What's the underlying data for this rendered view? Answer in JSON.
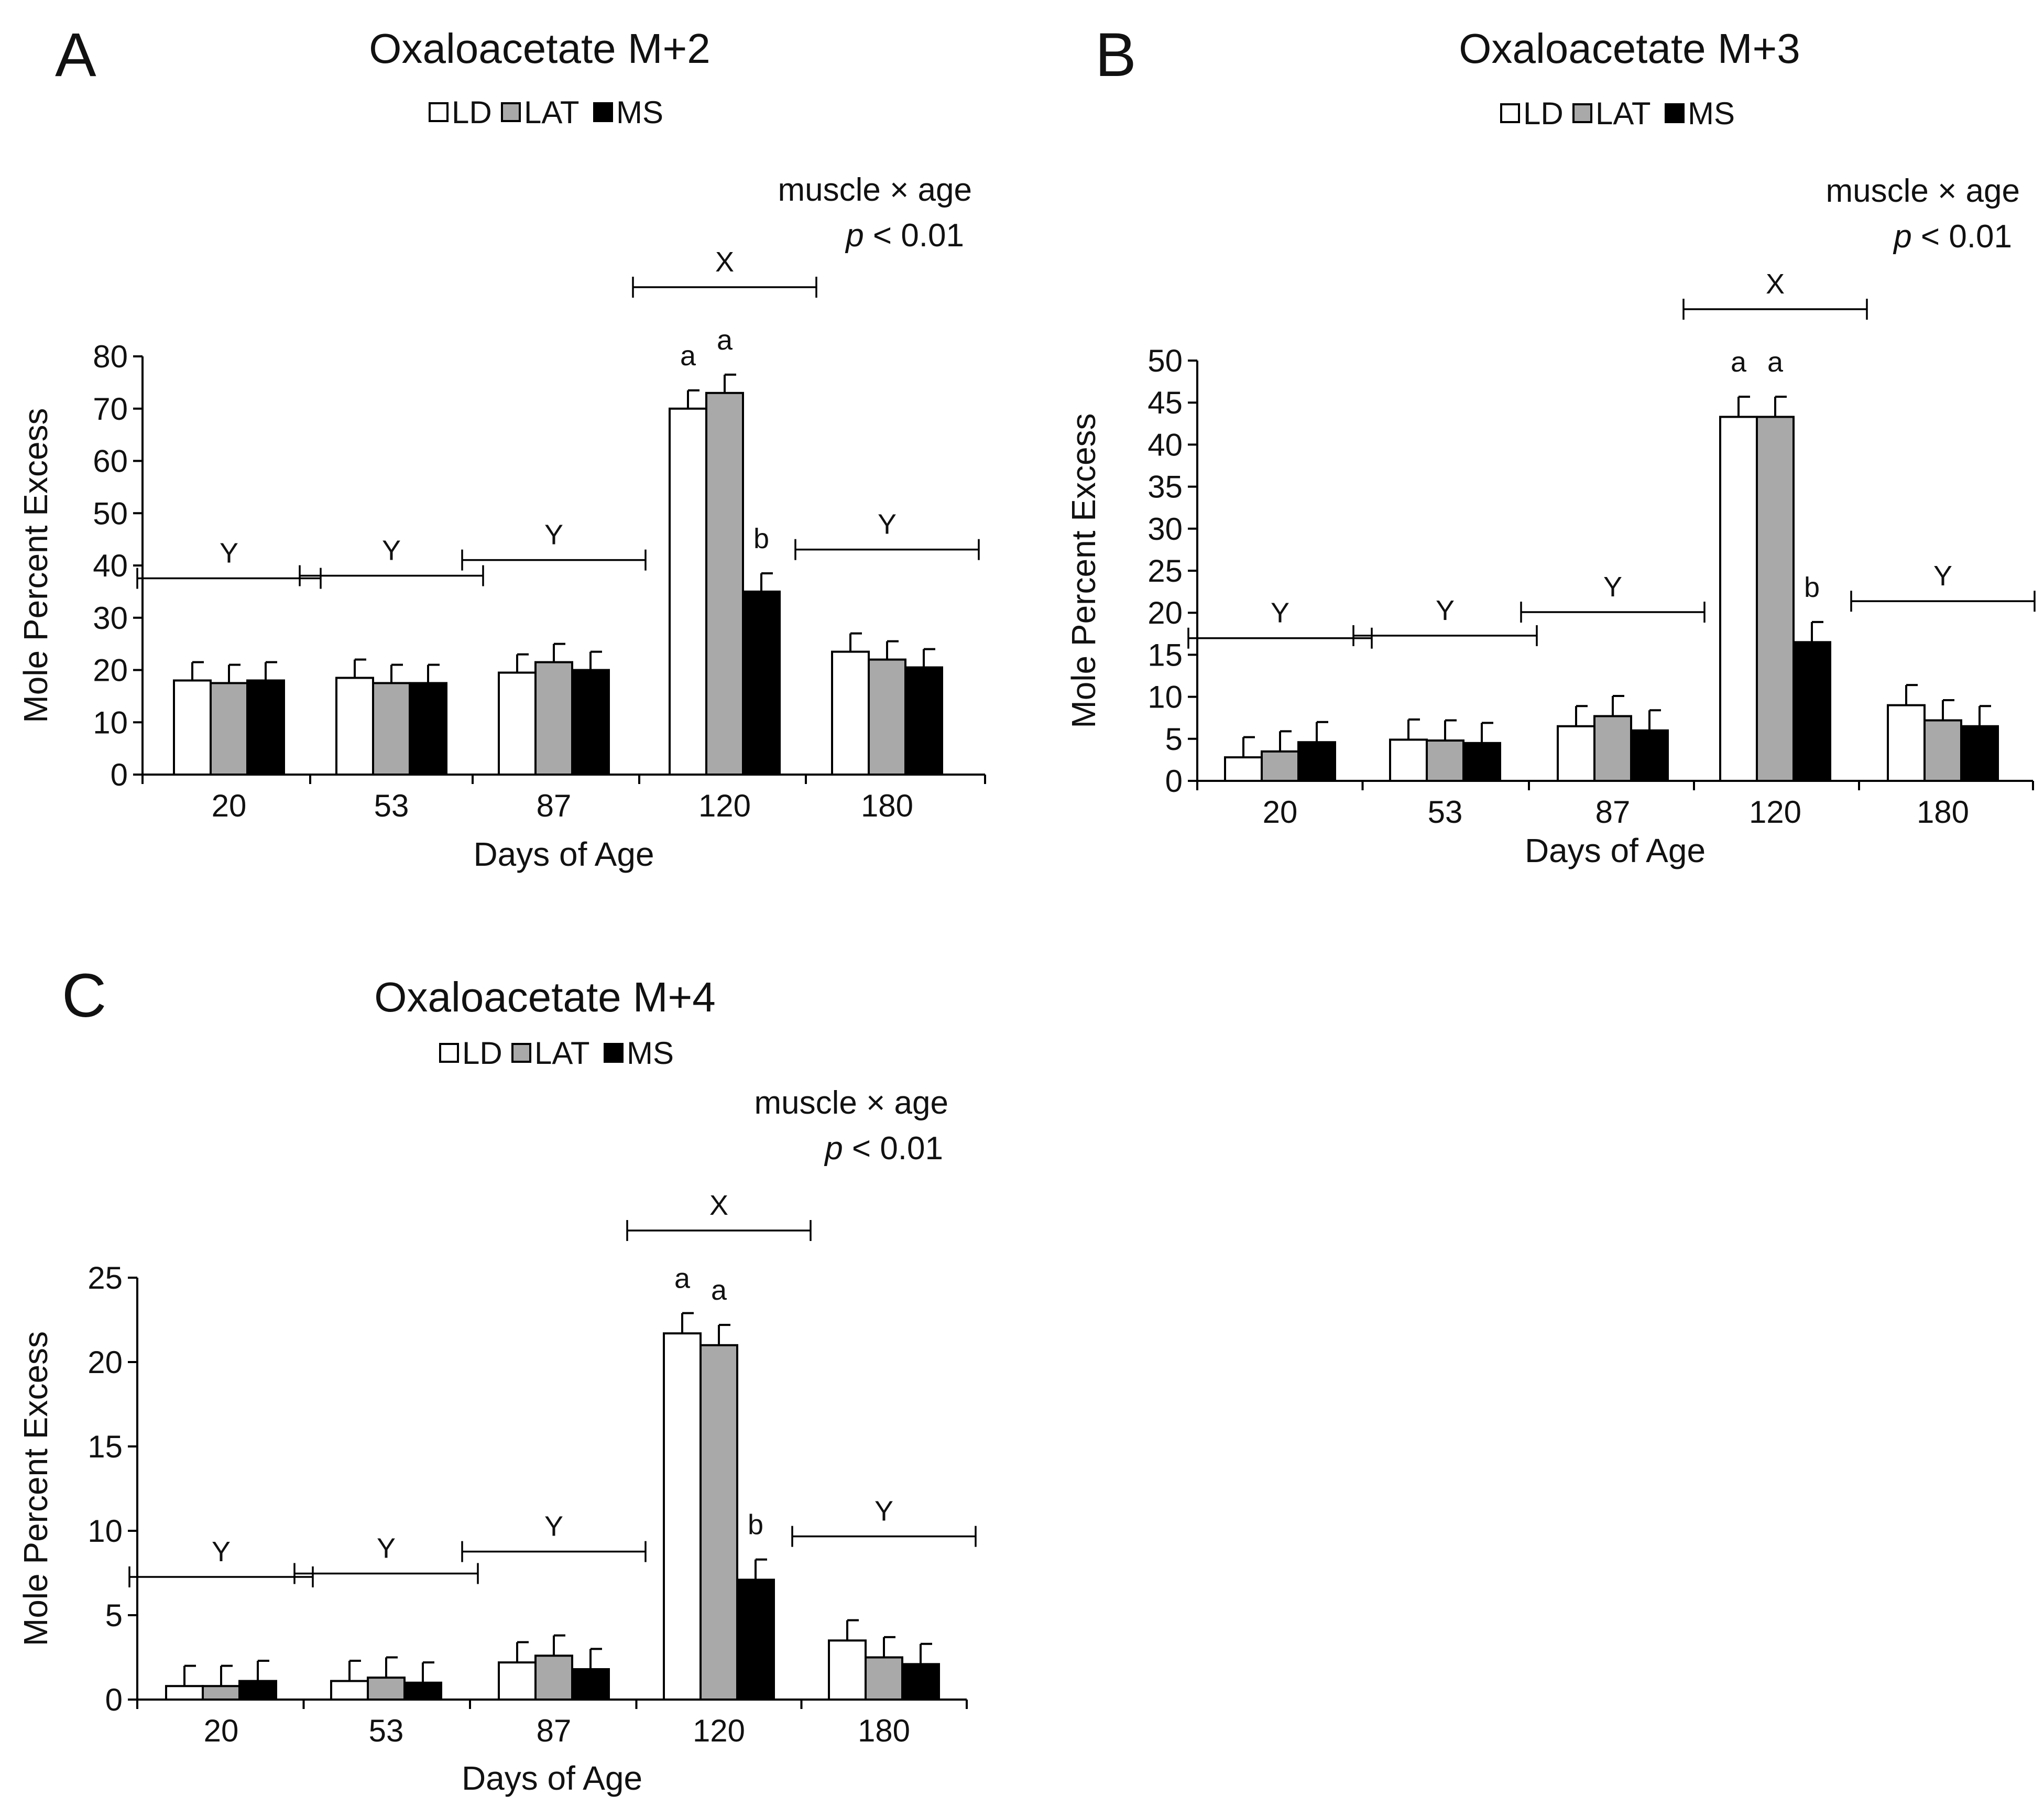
{
  "figure": {
    "legend": [
      "LD",
      "LAT",
      "MS"
    ],
    "colors": {
      "LD": "#ffffff",
      "LAT": "#a9a9a9",
      "MS": "#000000",
      "stroke": "#000000"
    }
  },
  "chart_data": [
    {
      "panel": "A",
      "type": "bar",
      "title": "Oxaloacetate M+2",
      "xlabel": "Days of Age",
      "ylabel": "Mole Percent Excess",
      "ylim": [
        0,
        80
      ],
      "yticks": [
        0,
        10,
        20,
        30,
        40,
        50,
        60,
        70,
        80
      ],
      "categories": [
        "20",
        "53",
        "87",
        "120",
        "180"
      ],
      "series": [
        {
          "name": "LD",
          "values": [
            18.0,
            18.5,
            19.5,
            70.0,
            23.5
          ],
          "errors": [
            3.5,
            3.5,
            3.5,
            3.5,
            3.5
          ]
        },
        {
          "name": "LAT",
          "values": [
            17.5,
            17.5,
            21.5,
            73.0,
            22.0
          ],
          "errors": [
            3.5,
            3.5,
            3.5,
            3.5,
            3.5
          ]
        },
        {
          "name": "MS",
          "values": [
            18.0,
            17.5,
            20.0,
            35.0,
            20.5
          ],
          "errors": [
            3.5,
            3.5,
            3.5,
            3.5,
            3.5
          ]
        }
      ],
      "bar_letters": [
        {
          "category": "120",
          "series": "LD",
          "text": "a"
        },
        {
          "category": "120",
          "series": "LAT",
          "text": "a"
        },
        {
          "category": "120",
          "series": "MS",
          "text": "b"
        }
      ],
      "group_letters": [
        "Y",
        "Y",
        "Y",
        "X",
        "Y"
      ],
      "stat_line1": "muscle × age",
      "stat_p": "p",
      "stat_rest": " < 0.01"
    },
    {
      "panel": "B",
      "type": "bar",
      "title": "Oxaloacetate M+3",
      "xlabel": "Days of Age",
      "ylabel": "Mole Percent Excess",
      "ylim": [
        0,
        50
      ],
      "yticks": [
        0,
        5,
        10,
        15,
        20,
        25,
        30,
        35,
        40,
        45,
        50
      ],
      "categories": [
        "20",
        "53",
        "87",
        "120",
        "180"
      ],
      "series": [
        {
          "name": "LD",
          "values": [
            2.8,
            4.9,
            6.5,
            43.3,
            9.0
          ],
          "errors": [
            2.4,
            2.4,
            2.4,
            2.4,
            2.4
          ]
        },
        {
          "name": "LAT",
          "values": [
            3.5,
            4.8,
            7.7,
            43.3,
            7.2
          ],
          "errors": [
            2.4,
            2.4,
            2.4,
            2.4,
            2.4
          ]
        },
        {
          "name": "MS",
          "values": [
            4.6,
            4.5,
            6.0,
            16.5,
            6.5
          ],
          "errors": [
            2.4,
            2.4,
            2.4,
            2.4,
            2.4
          ]
        }
      ],
      "bar_letters": [
        {
          "category": "120",
          "series": "LD",
          "text": "a"
        },
        {
          "category": "120",
          "series": "LAT",
          "text": "a"
        },
        {
          "category": "120",
          "series": "MS",
          "text": "b"
        }
      ],
      "group_letters": [
        "Y",
        "Y",
        "Y",
        "X",
        "Y"
      ],
      "stat_line1": "muscle × age",
      "stat_p": "p",
      "stat_rest": " < 0.01"
    },
    {
      "panel": "C",
      "type": "bar",
      "title": "Oxaloacetate M+4",
      "xlabel": "Days of Age",
      "ylabel": "Mole Percent Excess",
      "ylim": [
        0,
        25
      ],
      "yticks": [
        0,
        5,
        10,
        15,
        20,
        25
      ],
      "categories": [
        "20",
        "53",
        "87",
        "120",
        "180"
      ],
      "series": [
        {
          "name": "LD",
          "values": [
            0.8,
            1.1,
            2.2,
            21.7,
            3.5
          ],
          "errors": [
            1.2,
            1.2,
            1.2,
            1.2,
            1.2
          ]
        },
        {
          "name": "LAT",
          "values": [
            0.8,
            1.3,
            2.6,
            21.0,
            2.5
          ],
          "errors": [
            1.2,
            1.2,
            1.2,
            1.2,
            1.2
          ]
        },
        {
          "name": "MS",
          "values": [
            1.1,
            1.0,
            1.8,
            7.1,
            2.1
          ],
          "errors": [
            1.2,
            1.2,
            1.2,
            1.2,
            1.2
          ]
        }
      ],
      "bar_letters": [
        {
          "category": "120",
          "series": "LD",
          "text": "a"
        },
        {
          "category": "120",
          "series": "LAT",
          "text": "a"
        },
        {
          "category": "120",
          "series": "MS",
          "text": "b"
        }
      ],
      "group_letters": [
        "Y",
        "Y",
        "Y",
        "X",
        "Y"
      ],
      "stat_line1": "muscle × age",
      "stat_p": "p",
      "stat_rest": " < 0.01"
    }
  ]
}
